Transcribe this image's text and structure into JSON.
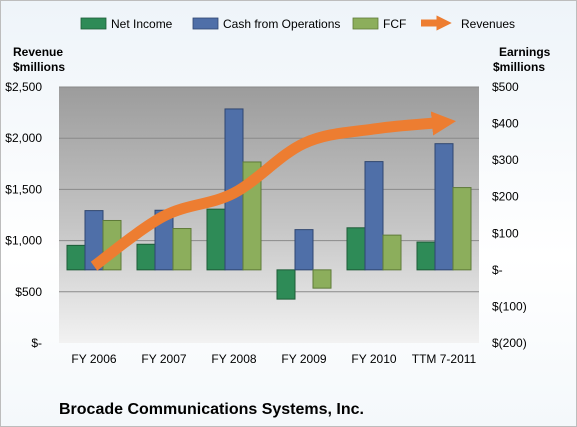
{
  "chart_data": {
    "type": "bar",
    "title": "Brocade Communications Systems, Inc.",
    "categories": [
      "FY 2006",
      "FY 2007",
      "FY 2008",
      "FY 2009",
      "FY 2010",
      "TTM 7-2011"
    ],
    "left_axis": {
      "title_line1": "Revenue",
      "title_line2": "$millions",
      "range": [
        0,
        2500
      ],
      "ticks": [
        0,
        500,
        1000,
        1500,
        2000,
        2500
      ],
      "tick_labels": [
        "$-",
        "$500",
        "$1,000",
        "$1,500",
        "$2,000",
        "$2,500"
      ]
    },
    "right_axis": {
      "title_line1": "Earnings",
      "title_line2": "$millions",
      "range": [
        -200,
        500
      ],
      "ticks": [
        -200,
        -100,
        0,
        100,
        200,
        300,
        400,
        500
      ],
      "tick_labels": [
        "$(200)",
        "$(100)",
        "$-",
        "$100",
        "$200",
        "$300",
        "$400",
        "$500"
      ]
    },
    "series": [
      {
        "name": "Net Income",
        "type": "bar",
        "axis": "right",
        "color": "#2e8b57",
        "values": [
          67,
          70,
          166,
          -80,
          115,
          76
        ]
      },
      {
        "name": "Cash from Operations",
        "type": "bar",
        "axis": "right",
        "color": "#4f6fa8",
        "values": [
          162,
          163,
          440,
          110,
          296,
          345
        ]
      },
      {
        "name": "FCF",
        "type": "bar",
        "axis": "right",
        "color": "#8cae5c",
        "values": [
          135,
          113,
          295,
          -50,
          95,
          225
        ]
      },
      {
        "name": "Revenues",
        "type": "line",
        "axis": "left",
        "color": "#ed7d31",
        "values": [
          750,
          1240,
          1465,
          1950,
          2090,
          2155
        ]
      }
    ],
    "grid": true,
    "legend_position": "top"
  }
}
